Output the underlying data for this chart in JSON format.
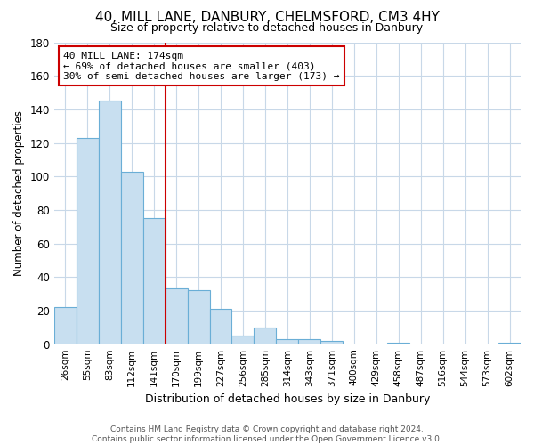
{
  "title": "40, MILL LANE, DANBURY, CHELMSFORD, CM3 4HY",
  "subtitle": "Size of property relative to detached houses in Danbury",
  "xlabel": "Distribution of detached houses by size in Danbury",
  "ylabel": "Number of detached properties",
  "bin_labels": [
    "26sqm",
    "55sqm",
    "83sqm",
    "112sqm",
    "141sqm",
    "170sqm",
    "199sqm",
    "227sqm",
    "256sqm",
    "285sqm",
    "314sqm",
    "343sqm",
    "371sqm",
    "400sqm",
    "429sqm",
    "458sqm",
    "487sqm",
    "516sqm",
    "544sqm",
    "573sqm",
    "602sqm"
  ],
  "bar_heights": [
    22,
    123,
    145,
    103,
    75,
    33,
    32,
    21,
    5,
    10,
    3,
    3,
    2,
    0,
    0,
    1,
    0,
    0,
    0,
    0,
    1
  ],
  "bar_color": "#c8dff0",
  "bar_edge_color": "#6aaed6",
  "vline_color": "#cc0000",
  "annotation_line1": "40 MILL LANE: 174sqm",
  "annotation_line2": "← 69% of detached houses are smaller (403)",
  "annotation_line3": "30% of semi-detached houses are larger (173) →",
  "annotation_box_color": "#ffffff",
  "annotation_box_edge": "#cc0000",
  "ylim": [
    0,
    180
  ],
  "yticks": [
    0,
    20,
    40,
    60,
    80,
    100,
    120,
    140,
    160,
    180
  ],
  "footer1": "Contains HM Land Registry data © Crown copyright and database right 2024.",
  "footer2": "Contains public sector information licensed under the Open Government Licence v3.0.",
  "bg_color": "#ffffff",
  "grid_color": "#c8d8e8"
}
